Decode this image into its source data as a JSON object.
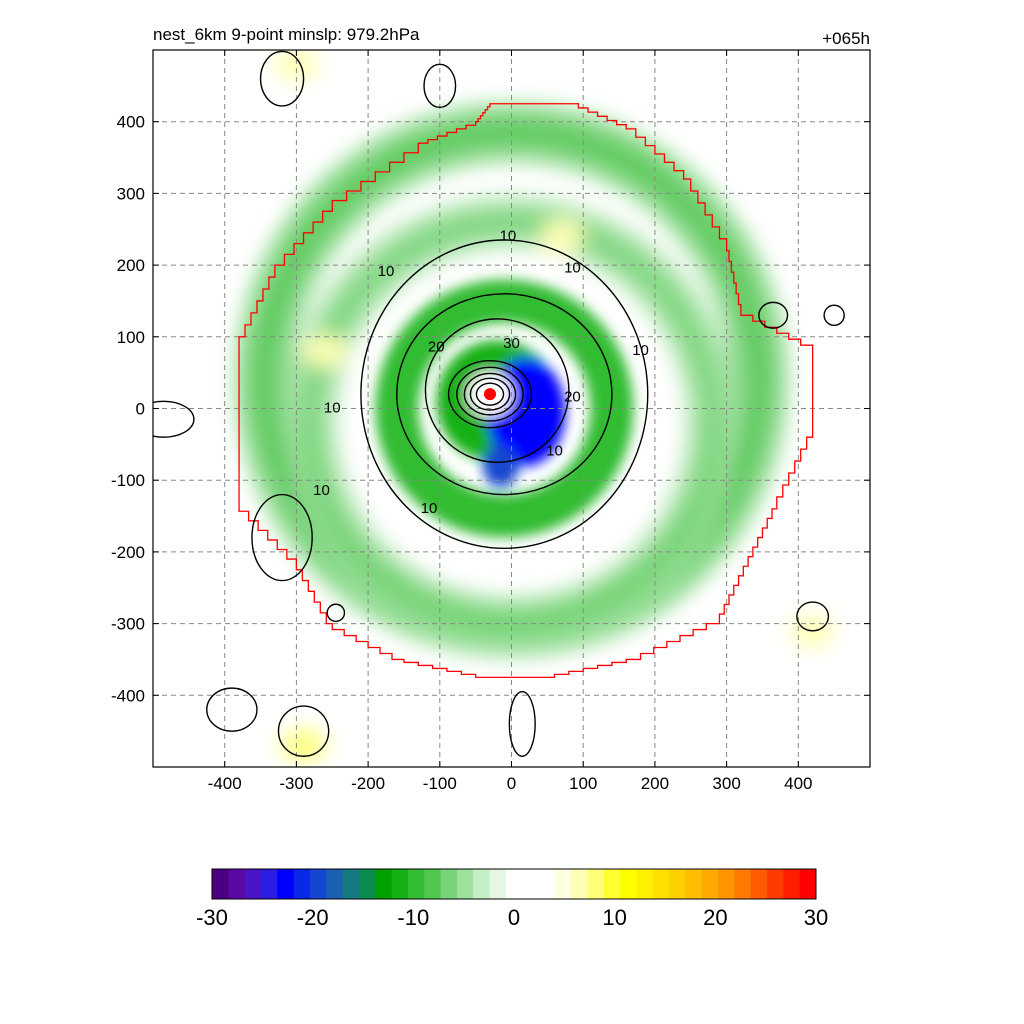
{
  "chart_data": {
    "type": "heatmap",
    "title_left": "nest_6km  9-point minslp: 979.2hPa",
    "title_right": "+065h",
    "xlabel": "",
    "ylabel": "",
    "xlim": [
      -500,
      500
    ],
    "ylim": [
      -500,
      500
    ],
    "x_ticks": [
      -400,
      -300,
      -200,
      -100,
      0,
      100,
      200,
      300,
      400
    ],
    "y_ticks": [
      -400,
      -300,
      -200,
      -100,
      0,
      100,
      200,
      300,
      400
    ],
    "grid": true,
    "colorbar": {
      "orientation": "horizontal",
      "min": -30,
      "max": 30,
      "ticks": [
        -30,
        -20,
        -10,
        0,
        10,
        20,
        30
      ],
      "colors": [
        "#4b0082",
        "#5a0aa0",
        "#4a14c8",
        "#2a1ee6",
        "#0000ff",
        "#0a28e8",
        "#1446d0",
        "#1a60b0",
        "#147a80",
        "#0a8c50",
        "#00a000",
        "#14b014",
        "#32bc32",
        "#50c850",
        "#78d478",
        "#9ee09e",
        "#c4eec4",
        "#e4f7e4",
        "#ffffff",
        "#ffffff",
        "#ffffff",
        "#fefee0",
        "#ffffb4",
        "#ffff78",
        "#ffff32",
        "#ffff00",
        "#fff000",
        "#ffe000",
        "#ffd000",
        "#ffbe00",
        "#ffaa00",
        "#ff9600",
        "#ff7800",
        "#ff5a00",
        "#ff3c00",
        "#ff1e00",
        "#ff0000"
      ]
    },
    "contour_labels": [
      {
        "x": -175,
        "y": 190,
        "text": "10"
      },
      {
        "x": 85,
        "y": 195,
        "text": "10"
      },
      {
        "x": 180,
        "y": 80,
        "text": "10"
      },
      {
        "x": -250,
        "y": 0,
        "text": "10"
      },
      {
        "x": -265,
        "y": -115,
        "text": "10"
      },
      {
        "x": 60,
        "y": -60,
        "text": "10"
      },
      {
        "x": -115,
        "y": -140,
        "text": "10"
      },
      {
        "x": -105,
        "y": 85,
        "text": "20"
      },
      {
        "x": 85,
        "y": 15,
        "text": "20"
      },
      {
        "x": 0,
        "y": 90,
        "text": "30"
      },
      {
        "x": -5,
        "y": 240,
        "text": "10"
      }
    ],
    "storm_center": {
      "x": -30,
      "y": 20
    },
    "red_boundary_description": "inner nest outline",
    "color_features": [
      {
        "kind": "green-ring",
        "cx": 0,
        "cy": 40,
        "r": 345,
        "w": 80,
        "value": -6
      },
      {
        "kind": "green-ring",
        "cx": 0,
        "cy": -20,
        "r": 280,
        "w": 70,
        "value": -5
      },
      {
        "kind": "yellow-blob",
        "x": -300,
        "y": 480,
        "value": 6
      },
      {
        "kind": "yellow-blob",
        "x": 70,
        "y": 240,
        "value": 6
      },
      {
        "kind": "yellow-blob",
        "x": -260,
        "y": 80,
        "value": 6
      },
      {
        "kind": "yellow-blob",
        "x": -290,
        "y": -470,
        "value": 8
      },
      {
        "kind": "yellow-blob",
        "x": 420,
        "y": -310,
        "value": 6
      },
      {
        "kind": "blue-core",
        "x": 30,
        "y": 0,
        "value": -24
      }
    ]
  }
}
